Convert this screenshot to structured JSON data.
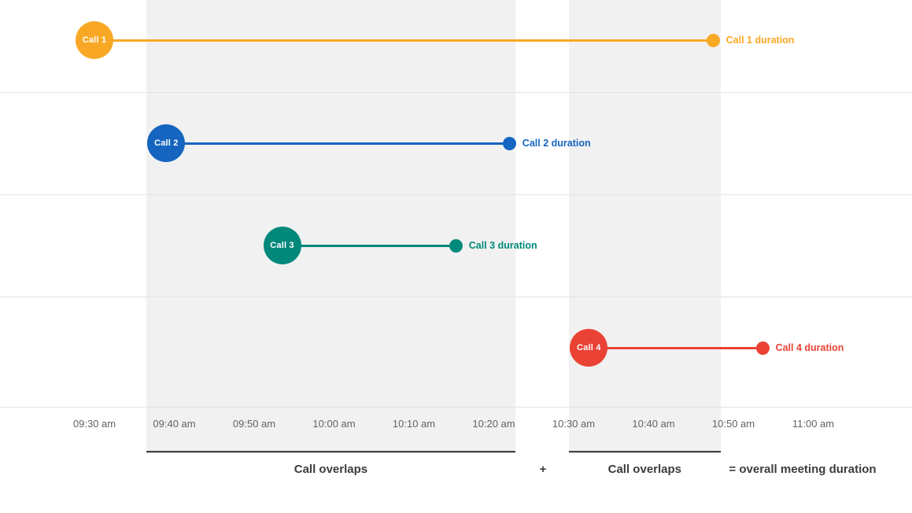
{
  "chart_data": {
    "type": "timeline",
    "title": "",
    "legend": "none",
    "grid": "horizontal",
    "x_axis": {
      "start_min": 570,
      "ticks": [
        {
          "label": "09:30 am",
          "min": 570
        },
        {
          "label": "09:40 am",
          "min": 580
        },
        {
          "label": "09:50 am",
          "min": 590
        },
        {
          "label": "10:00 am",
          "min": 600
        },
        {
          "label": "10:10 am",
          "min": 610
        },
        {
          "label": "10:20 am",
          "min": 620
        },
        {
          "label": "10:30 am",
          "min": 630
        },
        {
          "label": "10:40 am",
          "min": 640
        },
        {
          "label": "10:50 am",
          "min": 650
        },
        {
          "label": "11:00 am",
          "min": 660
        }
      ]
    },
    "series": [
      {
        "name": "Call 1",
        "duration_label": "Call 1 duration",
        "color": "#F9A825",
        "row": 0,
        "start_min": 570,
        "end_min": 647.5,
        "start_time": "09:30 am",
        "end_time": "10:48 am"
      },
      {
        "name": "Call 2",
        "duration_label": "Call 2 duration",
        "color": "#1565C0",
        "row": 1,
        "start_min": 579,
        "end_min": 622,
        "start_time": "09:39 am",
        "end_time": "10:22 am"
      },
      {
        "name": "Call 3",
        "duration_label": "Call 3 duration",
        "color": "#00897B",
        "row": 2,
        "start_min": 593.5,
        "end_min": 615.3,
        "start_time": "09:54 am",
        "end_time": "10:15 am"
      },
      {
        "name": "Call 4",
        "duration_label": "Call 4 duration",
        "color": "#EA4335",
        "row": 3,
        "start_min": 631.9,
        "end_min": 653.7,
        "start_time": "10:32 am",
        "end_time": "10:54 am"
      }
    ],
    "overlap_regions": [
      {
        "label": "Call overlaps",
        "start_min": 576.5,
        "end_min": 622.7
      },
      {
        "label": "Call overlaps",
        "start_min": 629.4,
        "end_min": 648.4
      }
    ],
    "footer": {
      "plus": "+",
      "equals_label": "= overall meeting duration"
    },
    "colors": {
      "band": "#F1F1F1",
      "gridline": "#E3E3E3",
      "underline": "#424242",
      "caption_text": "#3C3C3C",
      "tick_text": "#5F6368"
    }
  }
}
